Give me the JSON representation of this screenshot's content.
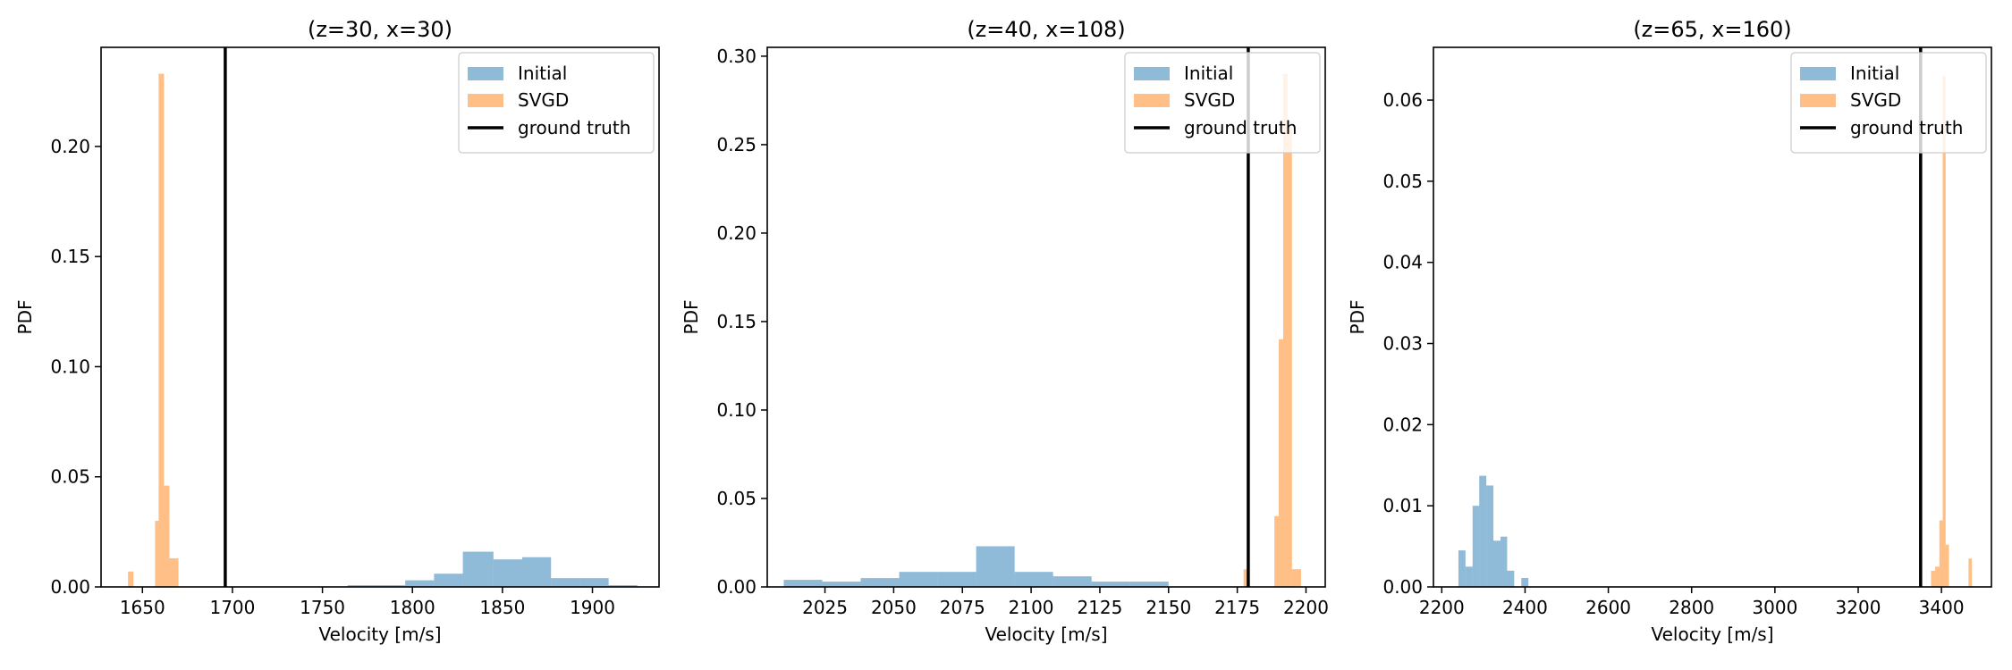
{
  "chart_data": [
    {
      "type": "histogram",
      "title": "(z=30, x=30)",
      "xlabel": "Velocity [m/s]",
      "ylabel": "PDF",
      "xlim": [
        1627,
        1937
      ],
      "ylim": [
        0,
        0.245
      ],
      "xticks": [
        1650,
        1700,
        1750,
        1800,
        1850,
        1900
      ],
      "yticks": [
        0.0,
        0.05,
        0.1,
        0.15,
        0.2
      ],
      "ytick_labels": [
        "0.00",
        "0.05",
        "0.10",
        "0.15",
        "0.20"
      ],
      "ground_truth": 1696,
      "legend": {
        "position": "top-right",
        "entries": [
          "Initial",
          "SVGD",
          "ground truth"
        ]
      },
      "series": [
        {
          "name": "Initial",
          "color": "#1f77b4",
          "opacity": 0.5,
          "bins": [
            [
              1764,
              1780,
              0.0008
            ],
            [
              1780,
              1796,
              0.0008
            ],
            [
              1796,
              1812,
              0.003
            ],
            [
              1812,
              1828,
              0.006
            ],
            [
              1828,
              1845,
              0.016
            ],
            [
              1845,
              1861,
              0.0125
            ],
            [
              1861,
              1877,
              0.0135
            ],
            [
              1877,
              1893,
              0.004
            ],
            [
              1893,
              1909,
              0.004
            ],
            [
              1909,
              1925,
              0.0008
            ]
          ]
        },
        {
          "name": "SVGD",
          "color": "#ff7f0e",
          "opacity": 0.5,
          "bins": [
            [
              1642,
              1645,
              0.007
            ],
            [
              1657,
              1659,
              0.03
            ],
            [
              1659,
              1662,
              0.233
            ],
            [
              1662,
              1665,
              0.046
            ],
            [
              1665,
              1670,
              0.013
            ]
          ]
        }
      ]
    },
    {
      "type": "histogram",
      "title": "(z=40, x=108)",
      "xlabel": "Velocity [m/s]",
      "ylabel": "PDF",
      "xlim": [
        2004,
        2207
      ],
      "ylim": [
        0,
        0.305
      ],
      "xticks": [
        2025,
        2050,
        2075,
        2100,
        2125,
        2150,
        2175,
        2200
      ],
      "yticks": [
        0.0,
        0.05,
        0.1,
        0.15,
        0.2,
        0.25,
        0.3
      ],
      "ytick_labels": [
        "0.00",
        "0.05",
        "0.10",
        "0.15",
        "0.20",
        "0.25",
        "0.30"
      ],
      "ground_truth": 2179,
      "legend": {
        "position": "top-right",
        "entries": [
          "Initial",
          "SVGD",
          "ground truth"
        ]
      },
      "series": [
        {
          "name": "Initial",
          "color": "#1f77b4",
          "opacity": 0.5,
          "bins": [
            [
              2010,
              2024,
              0.004
            ],
            [
              2024,
              2038,
              0.003
            ],
            [
              2038,
              2052,
              0.005
            ],
            [
              2052,
              2066,
              0.0085
            ],
            [
              2066,
              2080,
              0.0085
            ],
            [
              2080,
              2094,
              0.023
            ],
            [
              2094,
              2108,
              0.0085
            ],
            [
              2108,
              2122,
              0.006
            ],
            [
              2122,
              2136,
              0.003
            ],
            [
              2136,
              2150,
              0.003
            ]
          ]
        },
        {
          "name": "SVGD",
          "color": "#ff7f0e",
          "opacity": 0.5,
          "bins": [
            [
              2177.3,
              2178.9,
              0.01
            ],
            [
              2188.5,
              2190.1,
              0.04
            ],
            [
              2190.1,
              2191.7,
              0.14
            ],
            [
              2191.7,
              2193.3,
              0.29
            ],
            [
              2193.3,
              2194.9,
              0.26
            ],
            [
              2194.9,
              2198.2,
              0.01
            ]
          ]
        }
      ]
    },
    {
      "type": "histogram",
      "title": "(z=65, x=160)",
      "xlabel": "Velocity [m/s]",
      "ylabel": "PDF",
      "xlim": [
        2180,
        3520
      ],
      "ylim": [
        0,
        0.0665
      ],
      "xticks": [
        2200,
        2400,
        2600,
        2800,
        3000,
        3200,
        3400
      ],
      "yticks": [
        0.0,
        0.01,
        0.02,
        0.03,
        0.04,
        0.05,
        0.06
      ],
      "ytick_labels": [
        "0.00",
        "0.01",
        "0.02",
        "0.03",
        "0.04",
        "0.05",
        "0.06"
      ],
      "ground_truth": 3350,
      "legend": {
        "position": "top-right",
        "entries": [
          "Initial",
          "SVGD",
          "ground truth"
        ]
      },
      "series": [
        {
          "name": "Initial",
          "color": "#1f77b4",
          "opacity": 0.5,
          "bins": [
            [
              2240,
              2257,
              0.0045
            ],
            [
              2257,
              2274,
              0.0025
            ],
            [
              2274,
              2290,
              0.01
            ],
            [
              2290,
              2307,
              0.0137
            ],
            [
              2307,
              2324,
              0.0125
            ],
            [
              2324,
              2341,
              0.0057
            ],
            [
              2341,
              2357,
              0.0062
            ],
            [
              2357,
              2374,
              0.002
            ],
            [
              2391,
              2408,
              0.0011
            ]
          ]
        },
        {
          "name": "SVGD",
          "color": "#ff7f0e",
          "opacity": 0.5,
          "bins": [
            [
              3375,
              3385,
              0.002
            ],
            [
              3385,
              3395,
              0.0025
            ],
            [
              3395,
              3403,
              0.0082
            ],
            [
              3403,
              3410,
              0.063
            ],
            [
              3410,
              3418,
              0.0052
            ],
            [
              3465,
              3473,
              0.0035
            ]
          ]
        }
      ]
    }
  ]
}
